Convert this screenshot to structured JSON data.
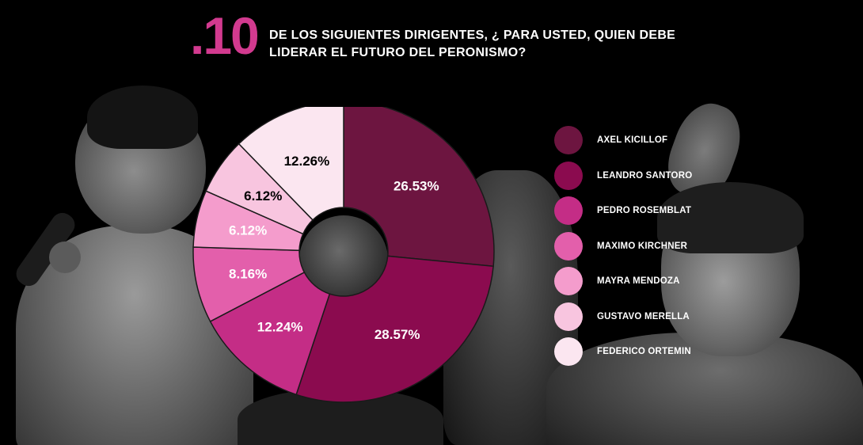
{
  "header": {
    "number": ".10",
    "question_line1": "DE LOS SIGUIENTES DIRIGENTES, ¿ PARA USTED, QUIEN DEBE",
    "question_line2": "LIDERAR EL FUTURO DEL PERONISMO?"
  },
  "chart_data": {
    "type": "pie",
    "donut": true,
    "legend_position": "right",
    "title": ".10 DE LOS SIGUIENTES DIRIGENTES, ¿ PARA USTED, QUIEN DEBE LIDERAR EL FUTURO DEL PERONISMO?",
    "categories": [
      "AXEL KICILLOF",
      "LEANDRO SANTORO",
      "PEDRO ROSEMBLAT",
      "MAXIMO KIRCHNER",
      "MAYRA MENDOZA",
      "GUSTAVO MERELLA",
      "FEDERICO ORTEMIN"
    ],
    "values": [
      26.53,
      28.57,
      12.24,
      8.16,
      6.12,
      6.12,
      12.26
    ],
    "labels": [
      "26.53%",
      "28.57%",
      "12.24%",
      "8.16%",
      "6.12%",
      "6.12%",
      "12.26%"
    ],
    "colors": [
      "#6d1540",
      "#8b0b4f",
      "#c42d86",
      "#e35fab",
      "#f49ccc",
      "#f8c5df",
      "#fbe6f0"
    ],
    "label_colors": [
      "#ffffff",
      "#ffffff",
      "#ffffff",
      "#ffffff",
      "#ffffff",
      "#000000",
      "#000000"
    ]
  }
}
